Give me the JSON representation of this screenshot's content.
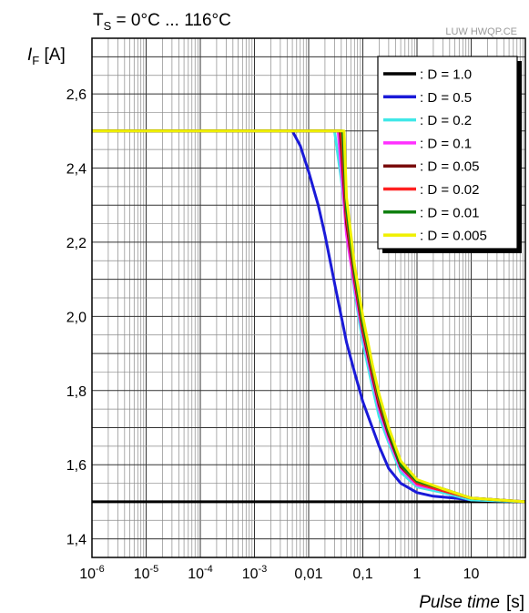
{
  "chart_data": {
    "type": "line",
    "title_prefix": "T",
    "title_sub": "S",
    "title_rest": " = 0°C ... 116°C",
    "watermark": "LUW HWQP.CE",
    "ylabel_var": "I",
    "ylabel_sub": "F",
    "ylabel_unit": " [A]",
    "xlabel_italic": "Pulse time",
    "xlabel_unit": "[s]",
    "x_scale": "log",
    "xlim": [
      1e-06,
      100
    ],
    "ylim": [
      1.35,
      2.75
    ],
    "grid": true,
    "legend_position": "top-right",
    "x_ticks": [
      {
        "value": 1e-06,
        "base": "10",
        "exp": "-6"
      },
      {
        "value": 1e-05,
        "base": "10",
        "exp": "-5"
      },
      {
        "value": 0.0001,
        "base": "10",
        "exp": "-4"
      },
      {
        "value": 0.001,
        "base": "10",
        "exp": "-3"
      },
      {
        "value": 0.01,
        "text": "0,01"
      },
      {
        "value": 0.1,
        "text": "0,1"
      },
      {
        "value": 1,
        "text": "1"
      },
      {
        "value": 10,
        "text": "10"
      }
    ],
    "y_ticks": [
      {
        "value": 1.4,
        "text": "1,4"
      },
      {
        "value": 1.6,
        "text": "1,6"
      },
      {
        "value": 1.8,
        "text": "1,8"
      },
      {
        "value": 2.0,
        "text": "2,0"
      },
      {
        "value": 2.2,
        "text": "2,2"
      },
      {
        "value": 2.4,
        "text": "2,4"
      },
      {
        "value": 2.6,
        "text": "2,6"
      }
    ],
    "series": [
      {
        "name": ": D = 1.0",
        "color": "#000000",
        "x": [
          1e-06,
          100
        ],
        "y": [
          1.5,
          1.5
        ]
      },
      {
        "name": ": D = 0.5",
        "color": "#1a1ad8",
        "x": [
          1e-06,
          0.005,
          0.007,
          0.01,
          0.015,
          0.02,
          0.03,
          0.05,
          0.07,
          0.1,
          0.2,
          0.3,
          0.5,
          1,
          2,
          5,
          10,
          100
        ],
        "y": [
          2.5,
          2.5,
          2.46,
          2.39,
          2.3,
          2.22,
          2.09,
          1.93,
          1.85,
          1.77,
          1.65,
          1.59,
          1.55,
          1.525,
          1.515,
          1.51,
          1.505,
          1.5
        ]
      },
      {
        "name": ": D = 0.2",
        "color": "#40e8e8",
        "x": [
          1e-06,
          0.03,
          0.04,
          0.05,
          0.07,
          0.1,
          0.15,
          0.2,
          0.3,
          0.5,
          1,
          3,
          10,
          100
        ],
        "y": [
          2.5,
          2.5,
          2.37,
          2.24,
          2.07,
          1.93,
          1.81,
          1.73,
          1.66,
          1.58,
          1.54,
          1.525,
          1.505,
          1.5
        ]
      },
      {
        "name": ": D = 0.1",
        "color": "#ff30ff",
        "x": [
          1e-06,
          0.035,
          0.05,
          0.07,
          0.1,
          0.15,
          0.2,
          0.3,
          0.5,
          1,
          3,
          10,
          100
        ],
        "y": [
          2.5,
          2.5,
          2.22,
          2.08,
          1.95,
          1.83,
          1.75,
          1.67,
          1.59,
          1.545,
          1.53,
          1.51,
          1.5
        ]
      },
      {
        "name": ": D = 0.05",
        "color": "#7a0c0c",
        "x": [
          1e-06,
          0.038,
          0.05,
          0.07,
          0.1,
          0.15,
          0.2,
          0.3,
          0.5,
          1,
          3,
          10,
          100
        ],
        "y": [
          2.5,
          2.5,
          2.25,
          2.1,
          1.96,
          1.84,
          1.76,
          1.68,
          1.595,
          1.55,
          1.53,
          1.51,
          1.5
        ]
      },
      {
        "name": ": D = 0.02",
        "color": "#ff2020",
        "x": [
          1e-06,
          0.04,
          0.05,
          0.07,
          0.1,
          0.15,
          0.2,
          0.3,
          0.5,
          1,
          3,
          10,
          100
        ],
        "y": [
          2.5,
          2.5,
          2.27,
          2.11,
          1.97,
          1.85,
          1.77,
          1.69,
          1.6,
          1.55,
          1.53,
          1.51,
          1.5
        ]
      },
      {
        "name": ": D = 0.01",
        "color": "#108010",
        "x": [
          1e-06,
          0.042,
          0.05,
          0.07,
          0.1,
          0.15,
          0.2,
          0.3,
          0.5,
          1,
          3,
          10,
          100
        ],
        "y": [
          2.5,
          2.5,
          2.29,
          2.12,
          1.98,
          1.86,
          1.78,
          1.69,
          1.6,
          1.555,
          1.535,
          1.51,
          1.5
        ]
      },
      {
        "name": ": D = 0.005",
        "color": "#f0f000",
        "x": [
          1e-06,
          0.045,
          0.05,
          0.07,
          0.1,
          0.15,
          0.2,
          0.3,
          0.5,
          1,
          3,
          10,
          100
        ],
        "y": [
          2.5,
          2.5,
          2.32,
          2.14,
          2.0,
          1.87,
          1.79,
          1.7,
          1.61,
          1.56,
          1.535,
          1.51,
          1.5
        ]
      }
    ]
  }
}
